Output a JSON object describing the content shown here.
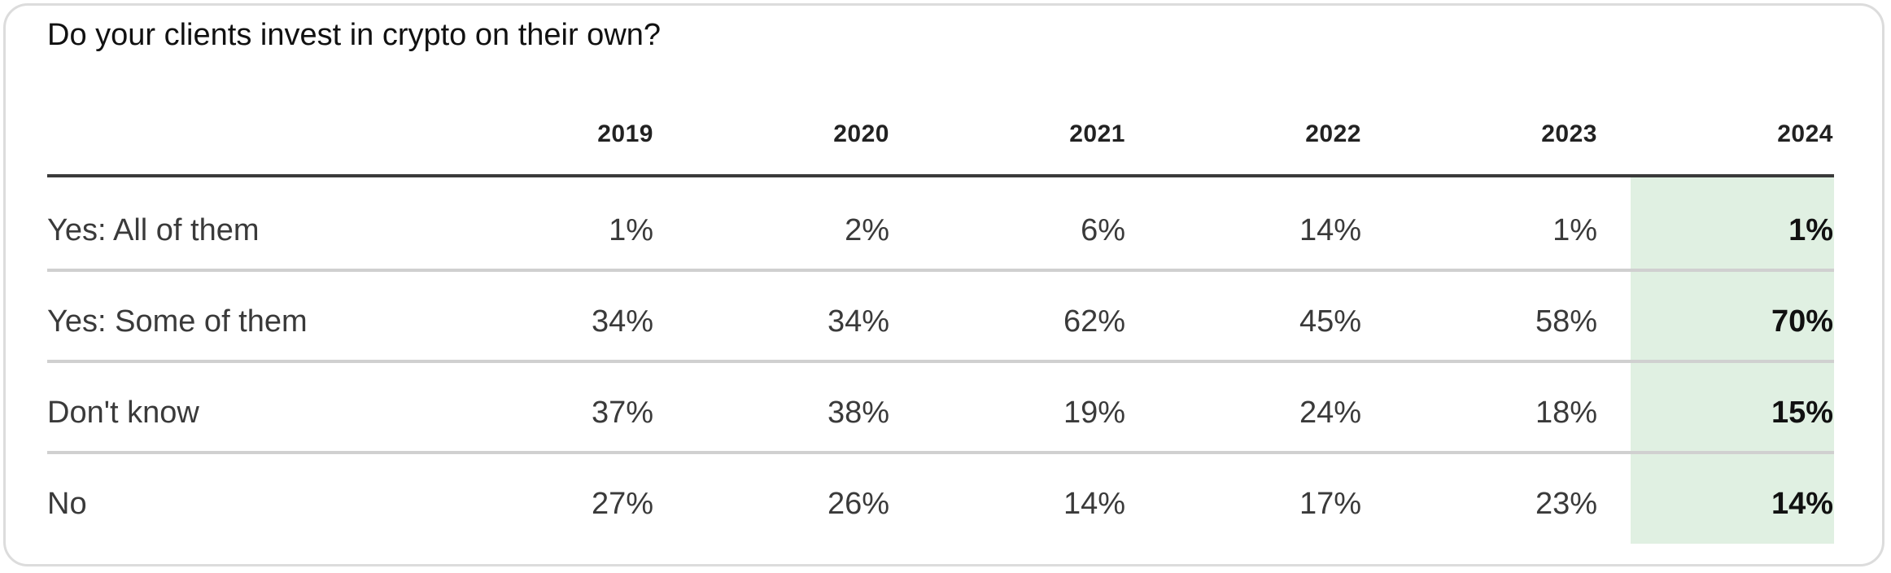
{
  "chart_data": {
    "type": "table",
    "title": "Do your clients invest in crypto on their own?",
    "columns": [
      "2019",
      "2020",
      "2021",
      "2022",
      "2023",
      "2024"
    ],
    "highlight_column": "2024",
    "highlight_color": "#e0f0e2",
    "rows": [
      {
        "label": "Yes: All of them",
        "values": [
          "1%",
          "2%",
          "6%",
          "14%",
          "1%",
          "1%"
        ]
      },
      {
        "label": "Yes: Some of them",
        "values": [
          "34%",
          "34%",
          "62%",
          "45%",
          "58%",
          "70%"
        ]
      },
      {
        "label": "Don't know",
        "values": [
          "37%",
          "38%",
          "19%",
          "24%",
          "18%",
          "15%"
        ]
      },
      {
        "label": "No",
        "values": [
          "27%",
          "26%",
          "14%",
          "17%",
          "23%",
          "14%"
        ]
      }
    ]
  }
}
